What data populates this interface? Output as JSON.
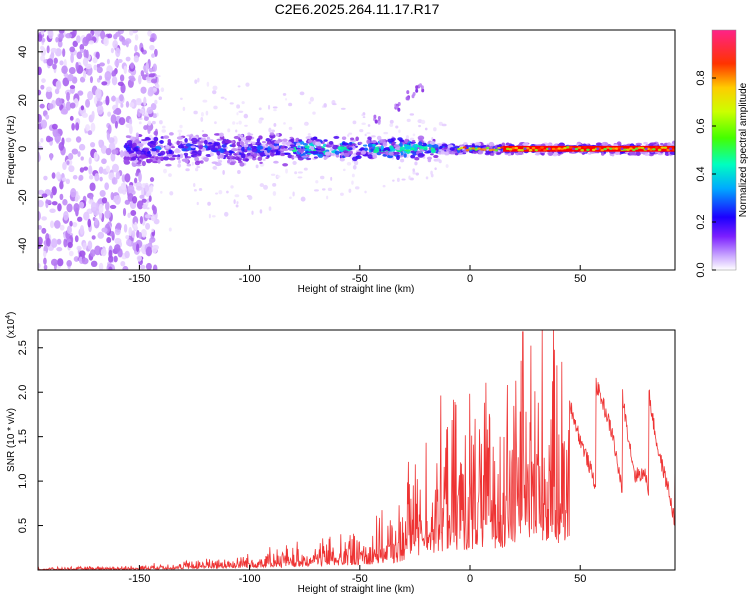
{
  "figure_title": "C2E6.2025.264.11.17.R17",
  "colors": {
    "snr_line": "#ee3333",
    "axis": "#000000",
    "colormap": [
      "#ffffff",
      "#d9b8ff",
      "#8a2be2",
      "#2a00ff",
      "#00bfff",
      "#00ff90",
      "#7fff00",
      "#ffd700",
      "#ff7f00",
      "#ff0000",
      "#ff1493"
    ]
  },
  "chart_data": [
    {
      "id": "spectrogram",
      "type": "heatmap",
      "title": "C2E6.2025.264.11.17.R17",
      "xlabel": "Height of straight line (km)",
      "ylabel": "Frequency (Hz)",
      "xlim": [
        -196,
        93
      ],
      "ylim": [
        -50,
        49
      ],
      "xticks": [
        -150,
        -100,
        -50,
        0,
        50
      ],
      "yticks": [
        -40,
        -20,
        0,
        20,
        40
      ],
      "colorbar": {
        "label": "Normalized spectral amplitude",
        "range": [
          0.0,
          1.0
        ],
        "ticks": [
          "0.0",
          "0.2",
          "0.4",
          "0.6",
          "0.8"
        ]
      },
      "features": {
        "noise_region_x": [
          -196,
          -150
        ],
        "central_band_freq": 0,
        "peak_band_x": [
          -5,
          93
        ],
        "side_streak_points": [
          [
            -43,
            12
          ],
          [
            -33,
            17
          ],
          [
            -27,
            22
          ],
          [
            -23,
            25
          ]
        ]
      }
    },
    {
      "id": "snr",
      "type": "line",
      "xlabel": "Height of straight line (km)",
      "ylabel": "SNR (10 * v/v)",
      "y_multiplier": "(x10",
      "y_multiplier_exp": "4",
      "xlim": [
        -196,
        93
      ],
      "ylim": [
        0,
        2.7
      ],
      "xticks": [
        -150,
        -100,
        -50,
        0,
        50
      ],
      "yticks": [
        0.5,
        1.0,
        1.5,
        2.0,
        2.5
      ],
      "ytick_labels": [
        "0.5",
        "1.0",
        "1.5",
        "2.0",
        "2.5"
      ],
      "envelope": {
        "x": [
          -196,
          -150,
          -130,
          -100,
          -80,
          -60,
          -40,
          -32,
          -28,
          -20,
          -10,
          0,
          10,
          20,
          25,
          30,
          40,
          50,
          57,
          60,
          65,
          70,
          75,
          80,
          85,
          90,
          93
        ],
        "y": [
          0.02,
          0.04,
          0.08,
          0.15,
          0.22,
          0.32,
          0.45,
          0.55,
          0.9,
          1.2,
          1.4,
          1.5,
          1.6,
          1.75,
          2.6,
          2.15,
          1.9,
          1.9,
          2.1,
          2.2,
          2.35,
          1.9,
          1.45,
          2.1,
          1.7,
          1.55,
          1.2
        ]
      },
      "peak": {
        "x": 24,
        "y": 2.68
      }
    }
  ]
}
